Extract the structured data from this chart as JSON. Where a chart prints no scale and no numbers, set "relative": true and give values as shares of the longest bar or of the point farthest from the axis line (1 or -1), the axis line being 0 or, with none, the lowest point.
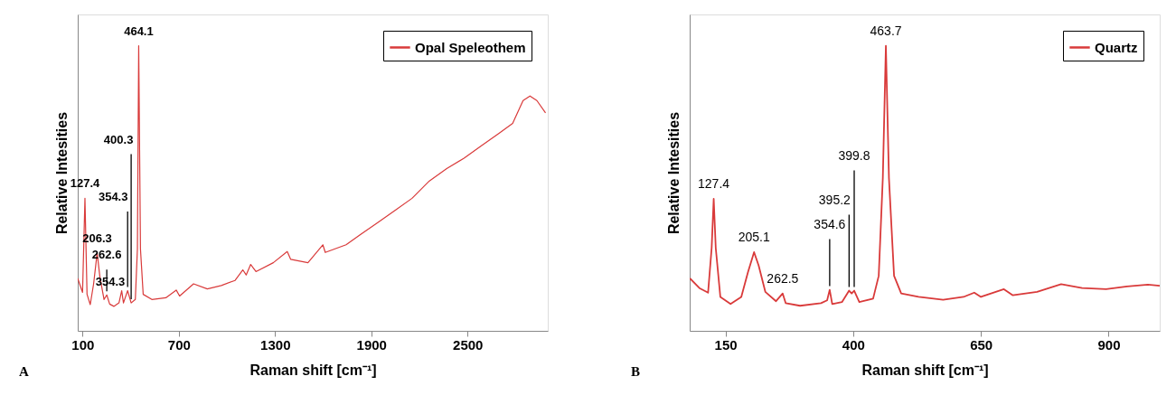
{
  "chart_data": [
    {
      "type": "line",
      "xlabel": "Raman shift [cm⁻¹]",
      "ylabel": "Relative Intesities",
      "xlim": [
        70,
        3000
      ],
      "xticks": [
        100,
        700,
        1300,
        1900,
        2500
      ],
      "relative": true,
      "legend": "top right",
      "grid": false,
      "series": [
        {
          "name": "Opal Speleothem",
          "color": "#d93a3a",
          "x": [
            70,
            100,
            115,
            128,
            148,
            169,
            191,
            208,
            234,
            251,
            269,
            295,
            327,
            344,
            355,
            381,
            403,
            429,
            442,
            450,
            461,
            478,
            532,
            619,
            684,
            705,
            792,
            878,
            965,
            1051,
            1099,
            1120,
            1148,
            1181,
            1289,
            1376,
            1397,
            1505,
            1598,
            1613,
            1743,
            1830,
            1938,
            2046,
            2154,
            2262,
            2370,
            2478,
            2586,
            2694,
            2781,
            2846,
            2889,
            2932,
            2986
          ],
          "values": [
            0.184,
            0.135,
            0.465,
            0.128,
            0.092,
            0.165,
            0.273,
            0.19,
            0.11,
            0.126,
            0.094,
            0.086,
            0.098,
            0.141,
            0.098,
            0.141,
            0.098,
            0.11,
            0.288,
            1.0,
            0.288,
            0.128,
            0.11,
            0.116,
            0.143,
            0.122,
            0.165,
            0.147,
            0.159,
            0.177,
            0.214,
            0.196,
            0.233,
            0.208,
            0.239,
            0.278,
            0.251,
            0.239,
            0.302,
            0.275,
            0.302,
            0.337,
            0.379,
            0.422,
            0.465,
            0.526,
            0.569,
            0.606,
            0.649,
            0.692,
            0.728,
            0.808,
            0.824,
            0.808,
            0.765
          ]
        }
      ],
      "annotations": [
        {
          "text": "464.1",
          "x": 450,
          "y": 1.0
        },
        {
          "text": "400.3",
          "x": 403,
          "y": 0.098
        },
        {
          "text": "127.4",
          "x": 115,
          "y": 0.465
        },
        {
          "text": "354.3",
          "x": 381,
          "y": 0.141
        },
        {
          "text": "206.3",
          "x": 191,
          "y": 0.273
        },
        {
          "text": "262.6",
          "x": 251,
          "y": 0.126
        },
        "354.3",
        "A"
      ]
    },
    {
      "type": "line",
      "xlabel": "Raman shift [cm⁻¹]",
      "ylabel": "Relative Intesities",
      "xlim": [
        80,
        1000
      ],
      "xticks": [
        150,
        400,
        650,
        900
      ],
      "relative": true,
      "legend": "top right",
      "grid": false,
      "series": [
        {
          "name": "Quartz",
          "color": "#d93a3a",
          "x": [
            80.5,
            99,
            116,
            123,
            127,
            131,
            140,
            160,
            181,
            194,
            206,
            215,
            228,
            249,
            262,
            268,
            296,
            337,
            349,
            354,
            359,
            378,
            392,
            397,
            402,
            412,
            439,
            450,
            458,
            464,
            470,
            480,
            494,
            528,
            576,
            616,
            637,
            650,
            695,
            712,
            760,
            807,
            848,
            895,
            936,
            977,
            1000
          ],
          "values": [
            0.184,
            0.15,
            0.134,
            0.291,
            0.463,
            0.291,
            0.119,
            0.094,
            0.119,
            0.205,
            0.276,
            0.229,
            0.137,
            0.104,
            0.131,
            0.097,
            0.088,
            0.097,
            0.107,
            0.144,
            0.094,
            0.101,
            0.141,
            0.131,
            0.141,
            0.101,
            0.113,
            0.193,
            0.536,
            1.0,
            0.536,
            0.193,
            0.131,
            0.119,
            0.109,
            0.119,
            0.134,
            0.119,
            0.146,
            0.125,
            0.137,
            0.164,
            0.15,
            0.146,
            0.156,
            0.162,
            0.158
          ]
        }
      ],
      "annotations": [
        {
          "text": "463.7",
          "x": 464,
          "y": 1.0
        },
        {
          "text": "127.4",
          "x": 127,
          "y": 0.463
        },
        {
          "text": "205.1",
          "x": 206,
          "y": 0.276
        },
        {
          "text": "262.5",
          "x": 262,
          "y": 0.131
        },
        {
          "text": "354.6",
          "x": 354,
          "y": 0.144
        },
        {
          "text": "395.2",
          "x": 392,
          "y": 0.141
        },
        {
          "text": "399.8",
          "x": 402,
          "y": 0.141
        },
        "B"
      ]
    }
  ]
}
